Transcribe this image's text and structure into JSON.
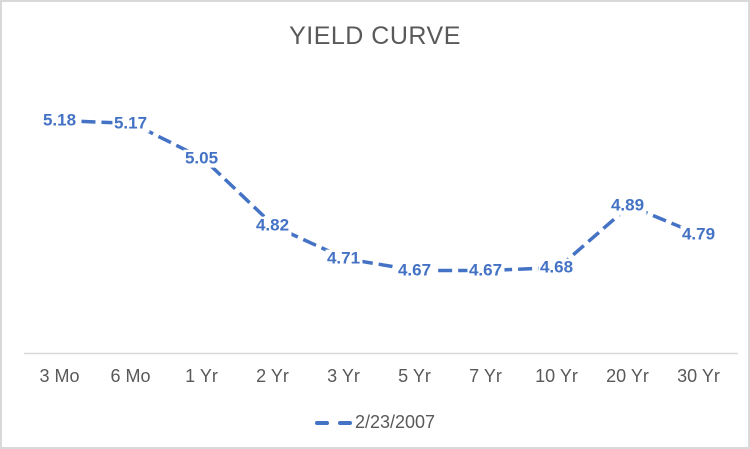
{
  "chart_data": {
    "type": "line",
    "title": "YIELD CURVE",
    "categories": [
      "3 Mo",
      "6 Mo",
      "1 Yr",
      "2 Yr",
      "3 Yr",
      "5 Yr",
      "7 Yr",
      "10 Yr",
      "20 Yr",
      "30 Yr"
    ],
    "series": [
      {
        "name": "2/23/2007",
        "values": [
          5.18,
          5.17,
          5.05,
          4.82,
          4.71,
          4.67,
          4.67,
          4.68,
          4.89,
          4.79
        ]
      }
    ],
    "data_labels": [
      "5.18",
      "5.17",
      "5.05",
      "4.82",
      "4.71",
      "4.67",
      "4.67",
      "4.68",
      "4.89",
      "4.79"
    ],
    "line_style": "dashed",
    "markers": "none",
    "xlabel": "",
    "ylabel": "",
    "ylim": [
      4.39,
      5.52
    ],
    "value_axis_visible": false,
    "grid": false,
    "legend_position": "bottom"
  },
  "colors": {
    "line": "#4472c4",
    "data_label": "#4472c4",
    "title_text": "#595959",
    "axis_text": "#595959",
    "axis_line": "#d9d9d9",
    "border": "#d9d9d9",
    "background": "#ffffff"
  }
}
